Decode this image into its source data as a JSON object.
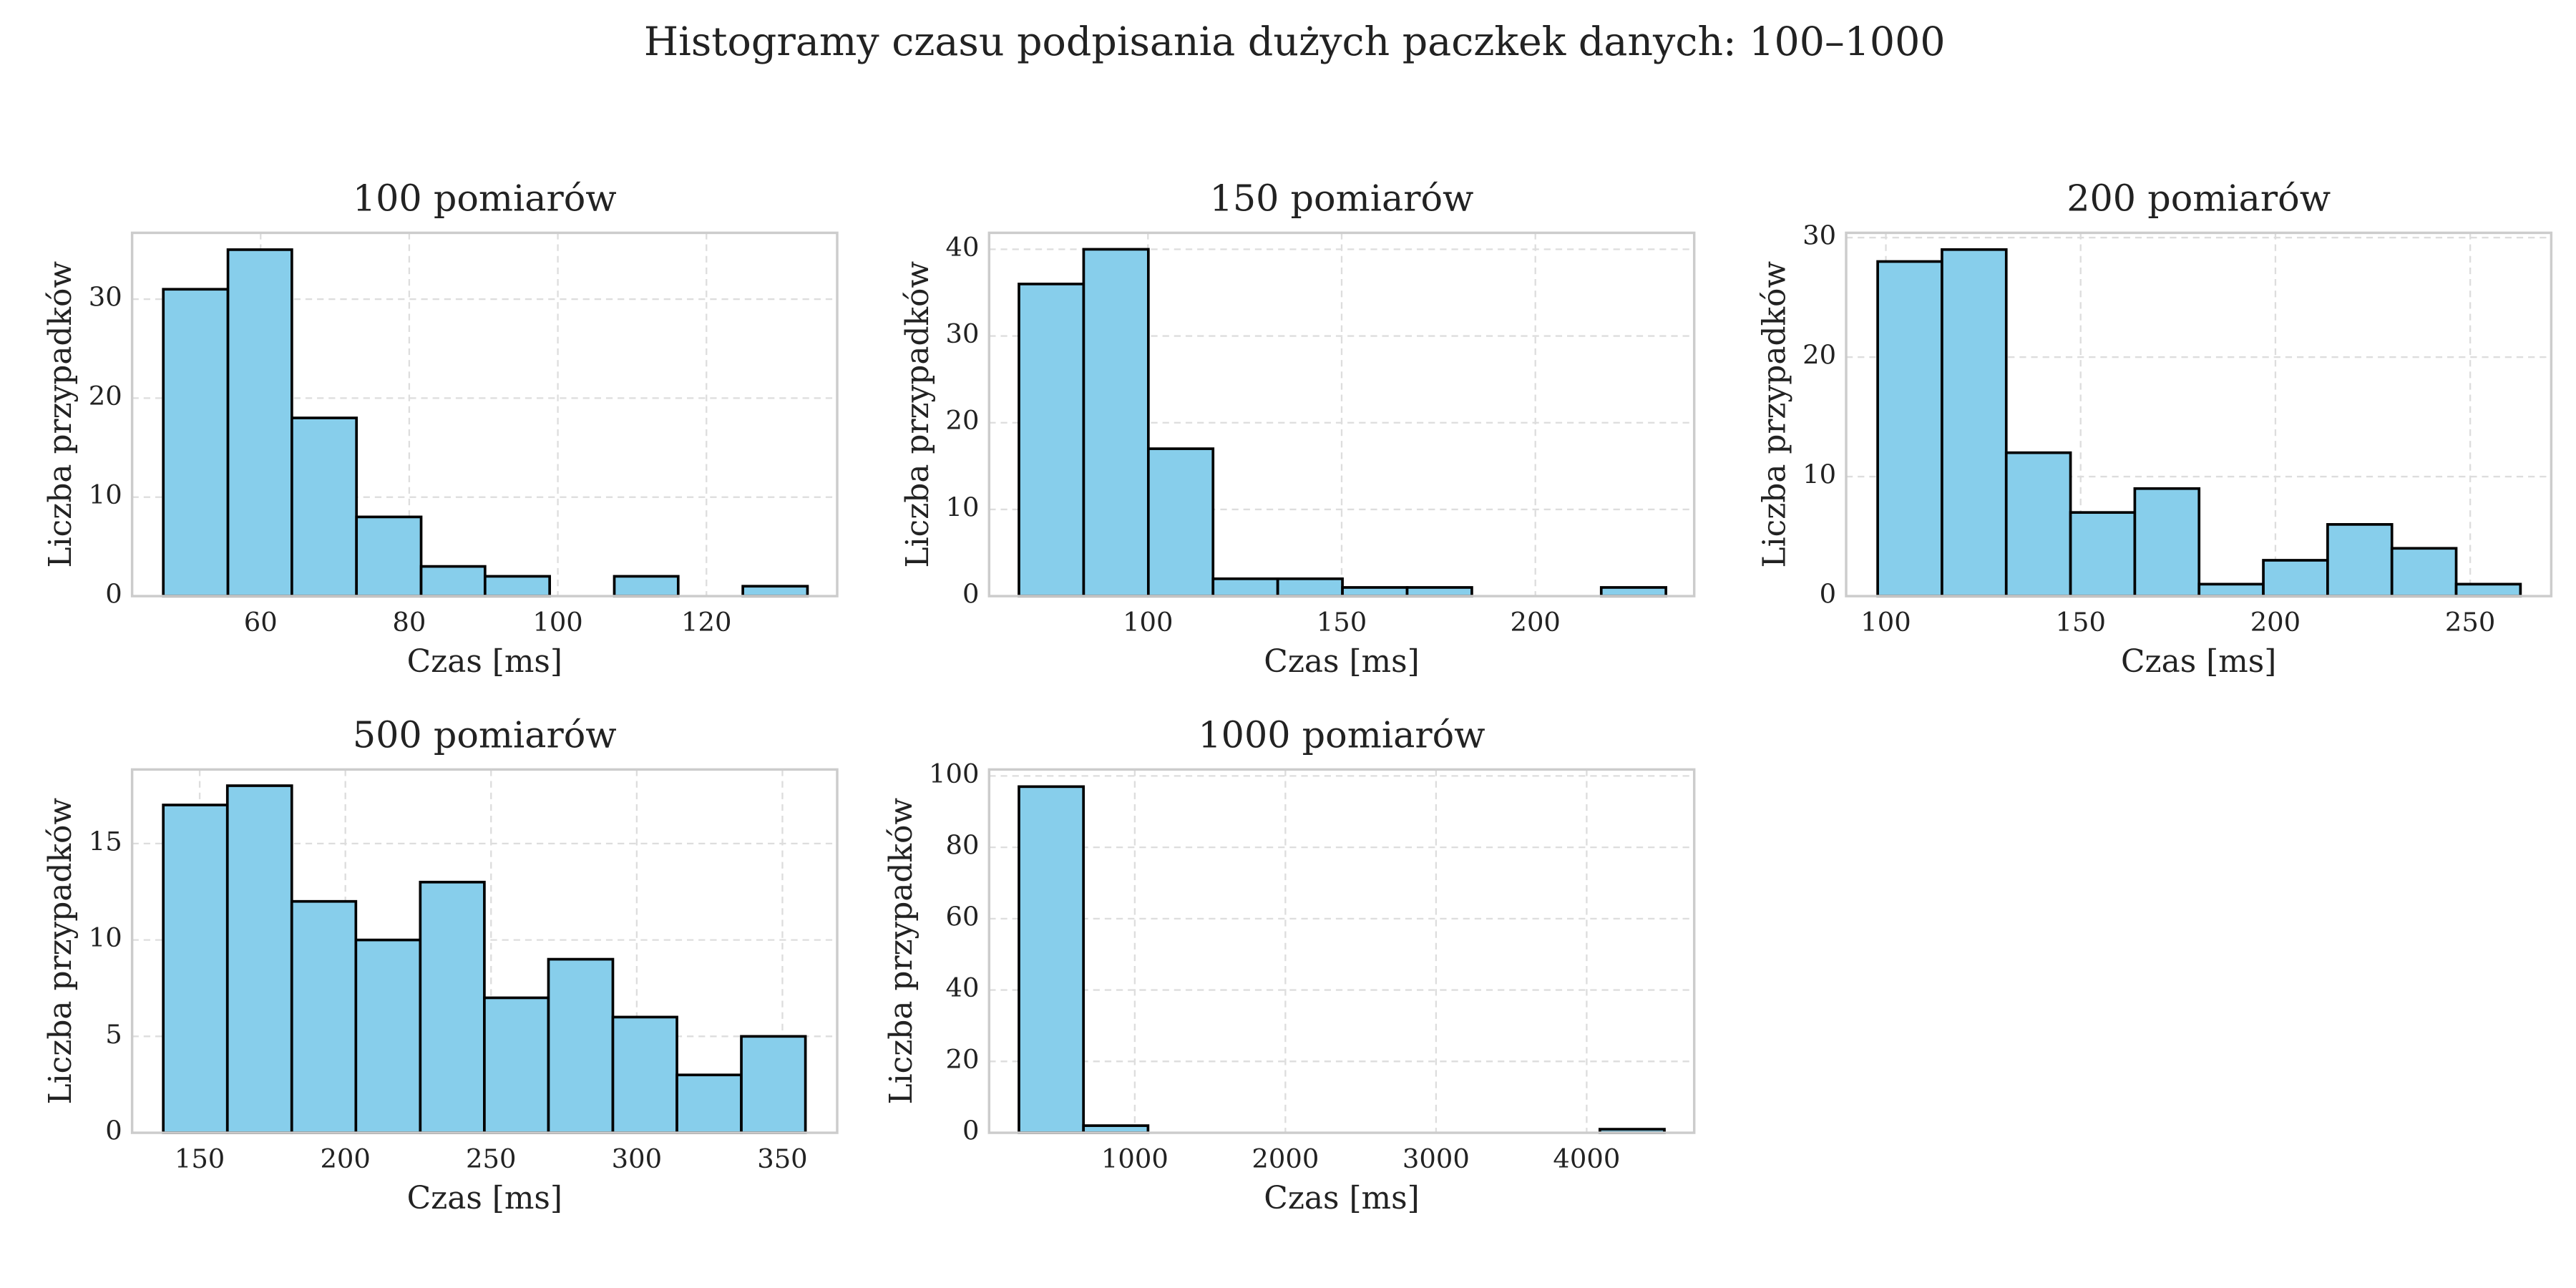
{
  "title": "Histogramy czasu podpisania dużych paczkek danych: 100–1000",
  "chart_data": [
    {
      "type": "histogram",
      "title": "100 pomiarów",
      "xlabel": "Czas [ms]",
      "ylabel": "Liczba przypadków",
      "bins": [
        46.9,
        55.6,
        64.2,
        72.9,
        81.6,
        90.2,
        98.9,
        107.6,
        116.2,
        124.9,
        133.6
      ],
      "values": [
        31,
        35,
        18,
        8,
        3,
        2,
        0,
        2,
        0,
        1
      ],
      "color": "#87ceeb",
      "edgecolor": "#000000",
      "grid": true,
      "xlim": [
        42.7,
        137.6
      ],
      "ylim": [
        0,
        36.7
      ],
      "xticks": [
        60,
        80,
        100,
        120
      ],
      "yticks": [
        0,
        10,
        20,
        30
      ]
    },
    {
      "type": "histogram",
      "title": "150 pomiarów",
      "xlabel": "Czas [ms]",
      "ylabel": "Liczba przypadków",
      "bins": [
        66.7,
        83.4,
        100.1,
        116.8,
        133.5,
        150.2,
        166.9,
        183.6,
        200.3,
        217,
        233.7
      ],
      "values": [
        36,
        40,
        17,
        2,
        2,
        1,
        1,
        0,
        0,
        1
      ],
      "color": "#87ceeb",
      "edgecolor": "#000000",
      "grid": true,
      "xlim": [
        59,
        241
      ],
      "ylim": [
        0,
        41.9
      ],
      "xticks": [
        100,
        150,
        200
      ],
      "yticks": [
        0,
        10,
        20,
        30,
        40
      ]
    },
    {
      "type": "histogram",
      "title": "200 pomiarów",
      "xlabel": "Czas [ms]",
      "ylabel": "Liczba przypadków",
      "bins": [
        97.9,
        114.4,
        130.9,
        147.4,
        163.9,
        180.4,
        196.9,
        213.4,
        229.9,
        246.4,
        262.9
      ],
      "values": [
        28,
        29,
        12,
        7,
        9,
        1,
        3,
        6,
        4,
        1
      ],
      "color": "#87ceeb",
      "edgecolor": "#000000",
      "grid": true,
      "xlim": [
        89.8,
        270.8
      ],
      "ylim": [
        0,
        30.4
      ],
      "xticks": [
        100,
        150,
        200,
        250
      ],
      "yticks": [
        0,
        10,
        20,
        30
      ]
    },
    {
      "type": "histogram",
      "title": "500 pomiarów",
      "xlabel": "Czas [ms]",
      "ylabel": "Liczba przypadków",
      "bins": [
        137.5,
        159.5,
        181.6,
        203.6,
        225.7,
        247.7,
        269.7,
        291.8,
        313.8,
        335.9,
        357.9
      ],
      "values": [
        17,
        18,
        12,
        10,
        13,
        7,
        9,
        6,
        3,
        5
      ],
      "color": "#87ceeb",
      "edgecolor": "#000000",
      "grid": true,
      "xlim": [
        126.8,
        368.8
      ],
      "ylim": [
        0,
        18.84
      ],
      "xticks": [
        150,
        200,
        250,
        300,
        350
      ],
      "yticks": [
        0,
        5,
        10,
        15
      ]
    },
    {
      "type": "histogram",
      "title": "1000 pomiarów",
      "xlabel": "Czas [ms]",
      "ylabel": "Liczba przypadków",
      "bins": [
        231,
        659.5,
        1088,
        1516.5,
        1945,
        2373.5,
        2802,
        3230.5,
        3659,
        4087.5,
        4516
      ],
      "values": [
        97,
        2,
        0,
        0,
        0,
        0,
        0,
        0,
        0,
        1
      ],
      "color": "#87ceeb",
      "edgecolor": "#000000",
      "grid": true,
      "xlim": [
        33,
        4714
      ],
      "ylim": [
        0,
        101.8
      ],
      "xticks": [
        1000,
        2000,
        3000,
        4000
      ],
      "yticks": [
        0,
        20,
        40,
        60,
        80,
        100
      ]
    }
  ]
}
